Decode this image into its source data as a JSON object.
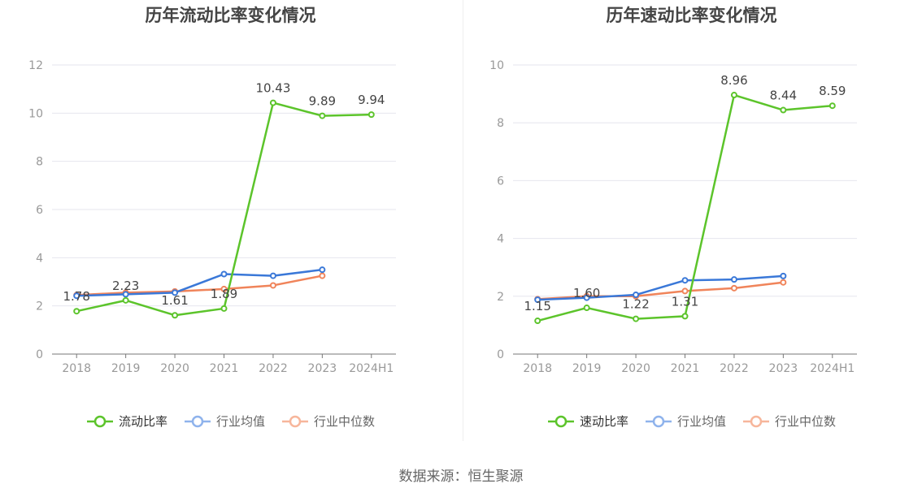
{
  "footer": {
    "source": "数据来源：恒生聚源"
  },
  "chart_data": [
    {
      "type": "line",
      "title": "历年流动比率变化情况",
      "categories": [
        "2018",
        "2019",
        "2020",
        "2021",
        "2022",
        "2023",
        "2024H1"
      ],
      "ylim": [
        0,
        12
      ],
      "yticks": [
        "0",
        "2",
        "4",
        "6",
        "8",
        "10",
        "12"
      ],
      "grid": true,
      "legend_position": "bottom",
      "series": [
        {
          "name": "流动比率",
          "color": "#5cc42b",
          "values": [
            1.78,
            2.23,
            1.61,
            1.89,
            10.43,
            9.89,
            9.94
          ],
          "labels": [
            "1.78",
            "2.23",
            "1.61",
            "1.89",
            "10.43",
            "9.89",
            "9.94"
          ]
        },
        {
          "name": "行业均值",
          "color": "#3a78d8",
          "legend_color": "#8fb3ec",
          "values": [
            2.42,
            2.48,
            2.55,
            3.32,
            3.25,
            3.5,
            null
          ]
        },
        {
          "name": "行业中位数",
          "color": "#f0845a",
          "legend_color": "#f7b69b",
          "values": [
            2.45,
            2.55,
            2.6,
            2.7,
            2.85,
            3.25,
            null
          ]
        }
      ]
    },
    {
      "type": "line",
      "title": "历年速动比率变化情况",
      "categories": [
        "2018",
        "2019",
        "2020",
        "2021",
        "2022",
        "2023",
        "2024H1"
      ],
      "ylim": [
        0,
        10
      ],
      "yticks": [
        "0",
        "2",
        "4",
        "6",
        "8",
        "10"
      ],
      "grid": true,
      "legend_position": "bottom",
      "series": [
        {
          "name": "速动比率",
          "color": "#5cc42b",
          "values": [
            1.15,
            1.6,
            1.22,
            1.31,
            8.96,
            8.44,
            8.59
          ],
          "labels": [
            "1.15",
            "1.60",
            "1.22",
            "1.31",
            "8.96",
            "8.44",
            "8.59"
          ]
        },
        {
          "name": "行业均值",
          "color": "#3a78d8",
          "legend_color": "#8fb3ec",
          "values": [
            1.88,
            1.95,
            2.05,
            2.55,
            2.58,
            2.7,
            null
          ]
        },
        {
          "name": "行业中位数",
          "color": "#f0845a",
          "legend_color": "#f7b69b",
          "values": [
            1.9,
            2.0,
            2.0,
            2.18,
            2.28,
            2.48,
            null
          ]
        }
      ]
    }
  ]
}
